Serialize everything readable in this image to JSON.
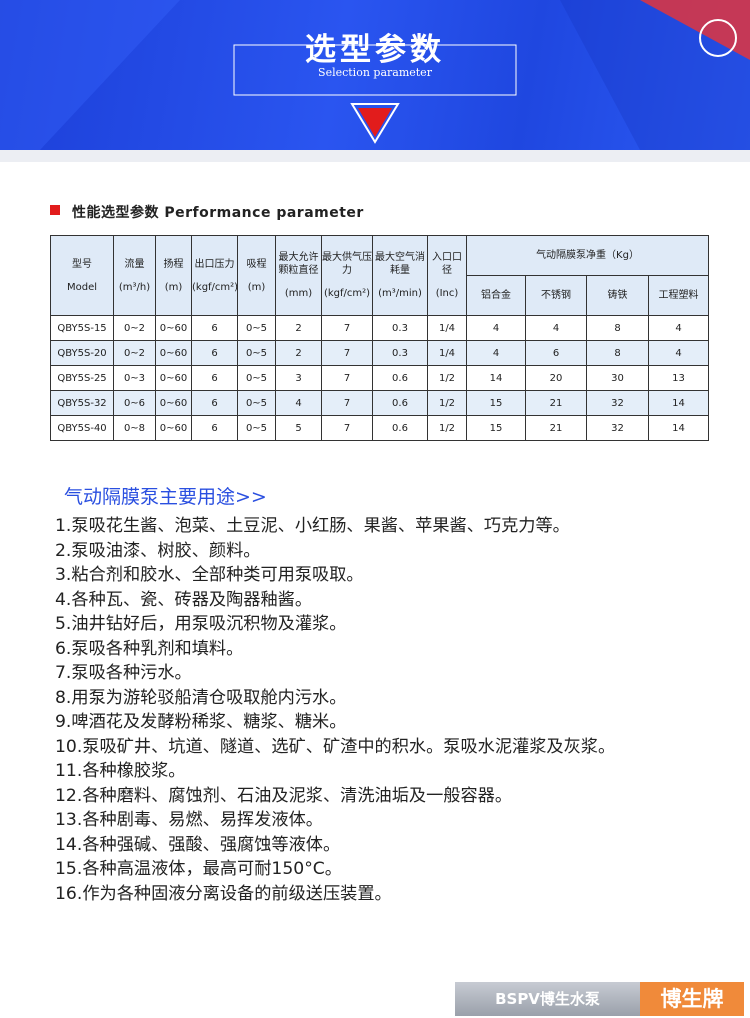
{
  "banner": {
    "title": "选型参数",
    "subtitle": "Selection parameter"
  },
  "section": {
    "heading": "性能选型参数 Performance parameter"
  },
  "table": {
    "header": [
      [
        "型号",
        "Model"
      ],
      [
        "流量",
        "(m³/h)"
      ],
      [
        "扬程",
        "(m)"
      ],
      [
        "出口压力",
        "(kgf/cm²)"
      ],
      [
        "吸程",
        "(m)"
      ],
      [
        "最大允许颗粒直径",
        "(mm)"
      ],
      [
        "最大供气压力",
        "(kgf/cm²)"
      ],
      [
        "最大空气消耗量",
        "(m³/min)"
      ],
      [
        "入口口径",
        "(Inc)"
      ]
    ],
    "weight_group": "气动隔膜泵净重（Kg）",
    "weight_columns": [
      "铝合金",
      "不锈钢",
      "铸铁",
      "工程塑料"
    ],
    "rows": [
      [
        "QBY5S-15",
        "0~2",
        "0~60",
        "6",
        "0~5",
        "2",
        "7",
        "0.3",
        "1/4",
        "4",
        "4",
        "8",
        "4"
      ],
      [
        "QBY5S-20",
        "0~2",
        "0~60",
        "6",
        "0~5",
        "2",
        "7",
        "0.3",
        "1/4",
        "4",
        "6",
        "8",
        "4"
      ],
      [
        "QBY5S-25",
        "0~3",
        "0~60",
        "6",
        "0~5",
        "3",
        "7",
        "0.6",
        "1/2",
        "14",
        "20",
        "30",
        "13"
      ],
      [
        "QBY5S-32",
        "0~6",
        "0~60",
        "6",
        "0~5",
        "4",
        "7",
        "0.6",
        "1/2",
        "15",
        "21",
        "32",
        "14"
      ],
      [
        "QBY5S-40",
        "0~8",
        "0~60",
        "6",
        "0~5",
        "5",
        "7",
        "0.6",
        "1/2",
        "15",
        "21",
        "32",
        "14"
      ]
    ]
  },
  "uses": {
    "heading": "气动隔膜泵主要用途>>",
    "items": [
      "1.泵吸花生酱、泡菜、土豆泥、小红肠、果酱、苹果酱、巧克力等。",
      "2.泵吸油漆、树胶、颜料。",
      "3.粘合剂和胶水、全部种类可用泵吸取。",
      "4.各种瓦、瓷、砖器及陶器釉酱。",
      "5.油井钻好后，用泵吸沉积物及灌浆。",
      "6.泵吸各种乳剂和填料。",
      "7.泵吸各种污水。",
      "8.用泵为游轮驳船清仓吸取舱内污水。",
      "9.啤酒花及发酵粉稀浆、糖浆、糖米。",
      "10.泵吸矿井、坑道、隧道、选矿、矿渣中的积水。泵吸水泥灌浆及灰浆。",
      "11.各种橡胶浆。",
      "12.各种磨料、腐蚀剂、石油及泥浆、清洗油垢及一般容器。",
      "13.各种剧毒、易燃、易挥发液体。",
      "14.各种强碱、强酸、强腐蚀等液体。",
      "15.各种高温液体，最高可耐150°C。",
      "16.作为各种固液分离设备的前级送压装置。"
    ]
  },
  "footer": {
    "logo": "BSPV博生水泵",
    "brand": "博生牌"
  }
}
